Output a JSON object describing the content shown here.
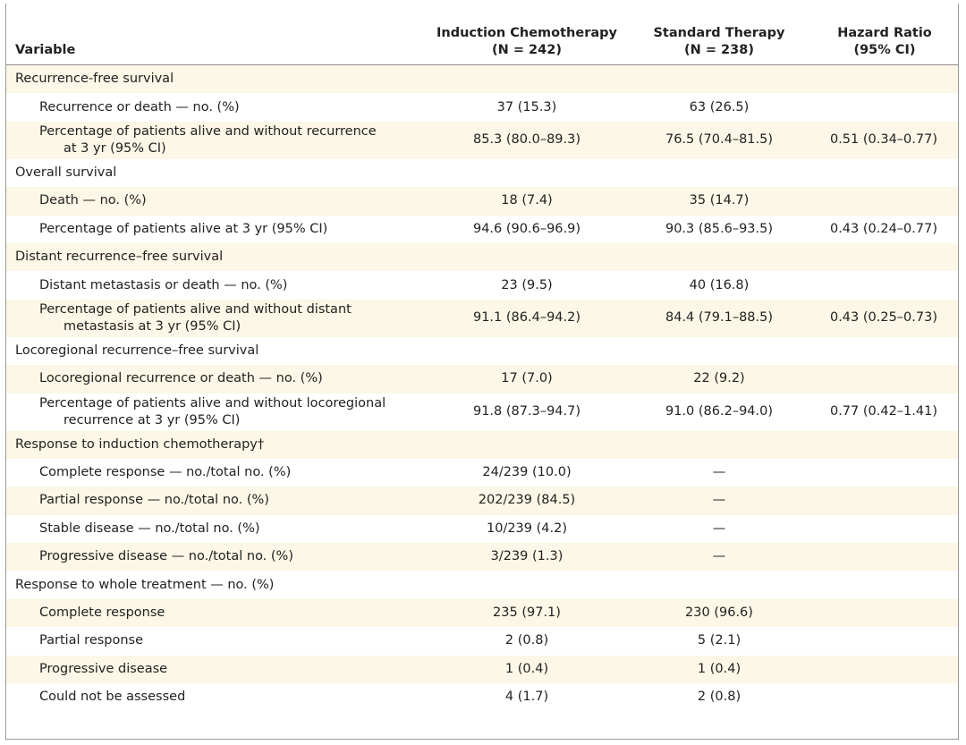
{
  "header": {
    "variable": "Variable",
    "col1": {
      "line1": "Induction Chemotherapy",
      "line2": "(N = 242)"
    },
    "col2": {
      "line1": "Standard Therapy",
      "line2": "(N = 238)"
    },
    "col3": {
      "line1": "Hazard Ratio",
      "line2": "(95% CI)"
    }
  },
  "rows": [
    {
      "label": "Recurrence-free survival"
    },
    {
      "label": "Recurrence or death — no. (%)",
      "induction": "37 (15.3)",
      "standard": "63 (26.5)"
    },
    {
      "label": "Percentage of patients alive and without recurrence",
      "label2": "at 3 yr (95% CI)",
      "induction": "85.3 (80.0–89.3)",
      "standard": "76.5 (70.4–81.5)",
      "hazard": "0.51 (0.34–0.77)"
    },
    {
      "label": "Overall survival"
    },
    {
      "label": "Death — no. (%)",
      "induction": "18 (7.4)",
      "standard": "35 (14.7)"
    },
    {
      "label": "Percentage of patients alive at 3 yr (95% CI)",
      "induction": "94.6 (90.6–96.9)",
      "standard": "90.3 (85.6–93.5)",
      "hazard": "0.43 (0.24–0.77)"
    },
    {
      "label": "Distant recurrence–free survival"
    },
    {
      "label": "Distant metastasis or death — no. (%)",
      "induction": "23 (9.5)",
      "standard": "40 (16.8)"
    },
    {
      "label": "Percentage of patients alive and without distant",
      "label2": "metastasis at 3 yr (95% CI)",
      "induction": "91.1 (86.4–94.2)",
      "standard": "84.4 (79.1–88.5)",
      "hazard": "0.43 (0.25–0.73)"
    },
    {
      "label": "Locoregional recurrence–free survival"
    },
    {
      "label": "Locoregional recurrence or death — no. (%)",
      "induction": "17 (7.0)",
      "standard": "22 (9.2)"
    },
    {
      "label": "Percentage of patients alive and without locoregional",
      "label2": "recurrence at 3 yr (95% CI)",
      "induction": "91.8 (87.3–94.7)",
      "standard": "91.0 (86.2–94.0)",
      "hazard": "0.77 (0.42–1.41)"
    },
    {
      "label": "Response to induction chemotherapy†"
    },
    {
      "label": "Complete response — no./total no. (%)",
      "induction": "24/239 (10.0)",
      "standard": "—"
    },
    {
      "label": "Partial response — no./total no. (%)",
      "induction": "202/239 (84.5)",
      "standard": "—"
    },
    {
      "label": "Stable disease — no./total no. (%)",
      "induction": "10/239 (4.2)",
      "standard": "—"
    },
    {
      "label": "Progressive disease — no./total no. (%)",
      "induction": "3/239 (1.3)",
      "standard": "—"
    },
    {
      "label": "Response to whole treatment — no. (%)"
    },
    {
      "label": "Complete response",
      "induction": "235 (97.1)",
      "standard": "230 (96.6)"
    },
    {
      "label": "Partial response",
      "induction": "2 (0.8)",
      "standard": "5 (2.1)"
    },
    {
      "label": "Progressive disease",
      "induction": "1 (0.4)",
      "standard": "1 (0.4)"
    },
    {
      "label": "Could not be assessed",
      "induction": "4 (1.7)",
      "standard": "2 (0.8)"
    }
  ]
}
